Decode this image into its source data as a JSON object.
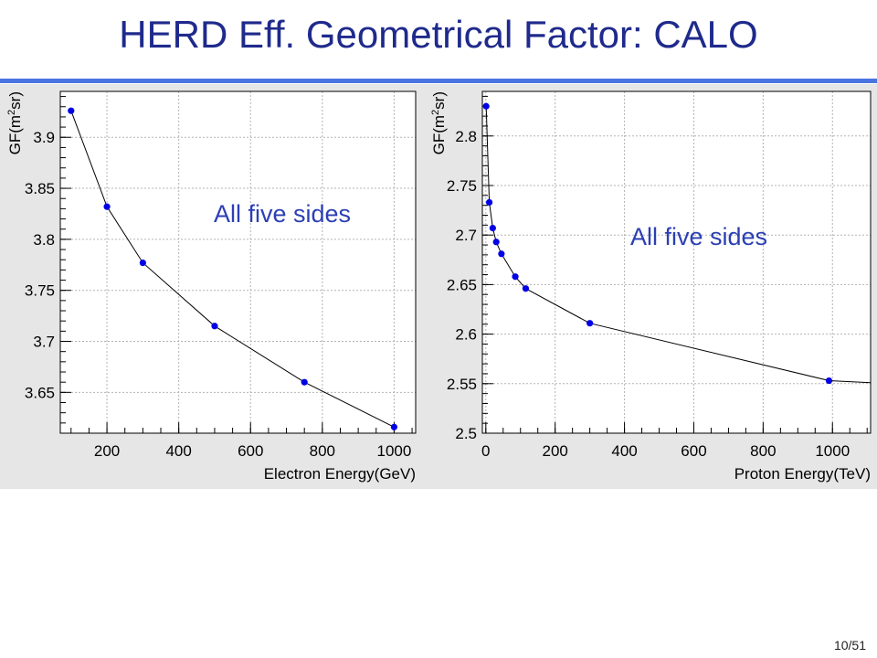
{
  "slide": {
    "title": "HERD Eff. Geometrical Factor: CALO",
    "page": "10/51"
  },
  "chart_data": [
    {
      "type": "line",
      "title": "",
      "xlabel": "Electron Energy(GeV)",
      "ylabel": "GF(m²sr)",
      "ylabel_parts": {
        "pre": "GF(m",
        "sup": "2",
        "post": "sr)"
      },
      "annotation": "All five sides",
      "xlim": [
        70,
        1060
      ],
      "ylim": [
        3.61,
        3.945
      ],
      "xticks": [
        200,
        400,
        600,
        800,
        1000
      ],
      "yticks": [
        3.65,
        3.7,
        3.75,
        3.8,
        3.85,
        3.9
      ],
      "grid": true,
      "marker_color": "#0000e6",
      "series": [
        {
          "x": [
            100,
            200,
            300,
            500,
            750,
            1000
          ],
          "y": [
            3.926,
            3.832,
            3.777,
            3.715,
            3.66,
            3.616
          ]
        }
      ]
    },
    {
      "type": "line",
      "title": "",
      "xlabel": "Proton Energy(TeV)",
      "ylabel": "GF(m²sr)",
      "ylabel_parts": {
        "pre": "GF(m",
        "sup": "2",
        "post": "sr)"
      },
      "annotation": "All five sides",
      "xlim": [
        -10,
        1110
      ],
      "ylim": [
        2.5,
        2.845
      ],
      "xticks": [
        0,
        200,
        400,
        600,
        800,
        1000
      ],
      "yticks": [
        2.5,
        2.55,
        2.6,
        2.65,
        2.7,
        2.75,
        2.8
      ],
      "grid": true,
      "marker_color": "#0000e6",
      "series": [
        {
          "x": [
            1,
            10,
            20,
            30,
            45,
            85,
            115,
            300,
            990
          ],
          "y": [
            2.83,
            2.733,
            2.707,
            2.693,
            2.681,
            2.658,
            2.646,
            2.611,
            2.553
          ]
        }
      ],
      "curve_extends_to": [
        1110,
        2.551
      ]
    }
  ]
}
